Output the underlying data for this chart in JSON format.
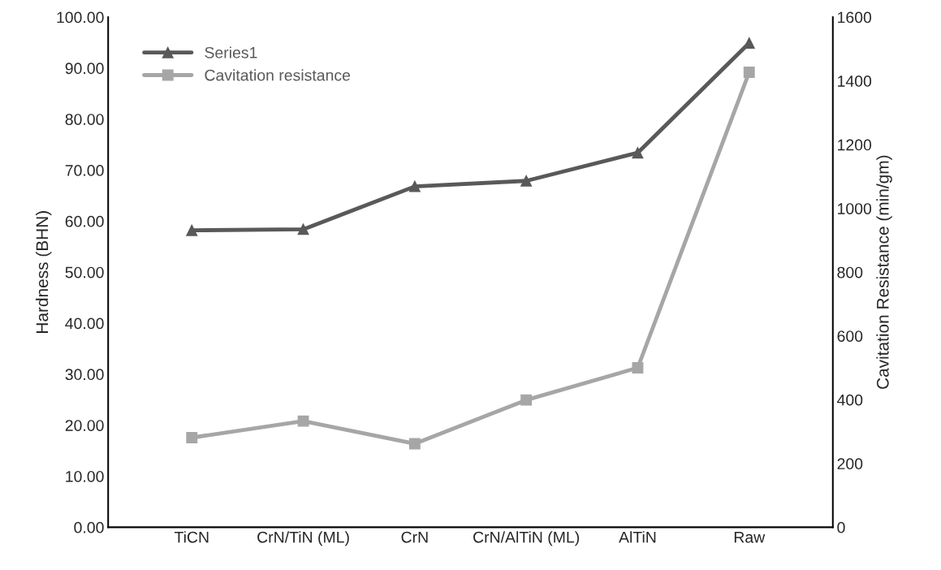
{
  "chart_data": {
    "type": "line",
    "categories": [
      "TiCN",
      "CrN/TiN (ML)",
      "CrN",
      "CrN/AlTiN (ML)",
      "AlTiN",
      "Raw"
    ],
    "series": [
      {
        "name": "Series1",
        "color": "#595959",
        "marker": "triangle",
        "values": [
          58.2,
          58.4,
          66.8,
          67.9,
          73.4,
          94.9
        ]
      },
      {
        "name": "Cavitation resistance",
        "color": "#a6a6a6",
        "marker": "square",
        "axis": "y2",
        "values": [
          281,
          333,
          262,
          399,
          500,
          1427
        ]
      }
    ],
    "ylabel": "Hardness (BHN)",
    "y2label": "Cavitation Resistance (min/gm)",
    "ylim": [
      0,
      100
    ],
    "yticks": [
      {
        "value": 0,
        "label": "0.00"
      },
      {
        "value": 10,
        "label": "10.00"
      },
      {
        "value": 20,
        "label": "20.00"
      },
      {
        "value": 30,
        "label": "30.00"
      },
      {
        "value": 40,
        "label": "40.00"
      },
      {
        "value": 50,
        "label": "50.00"
      },
      {
        "value": 60,
        "label": "60.00"
      },
      {
        "value": 70,
        "label": "70.00"
      },
      {
        "value": 80,
        "label": "80.00"
      },
      {
        "value": 90,
        "label": "90.00"
      },
      {
        "value": 100,
        "label": "100.00"
      }
    ],
    "y2lim": [
      0,
      1600
    ],
    "y2ticks": [
      0,
      200,
      400,
      600,
      800,
      1000,
      1200,
      1400,
      1600
    ],
    "legend": "top left",
    "grid": false,
    "line_style": "solid"
  }
}
